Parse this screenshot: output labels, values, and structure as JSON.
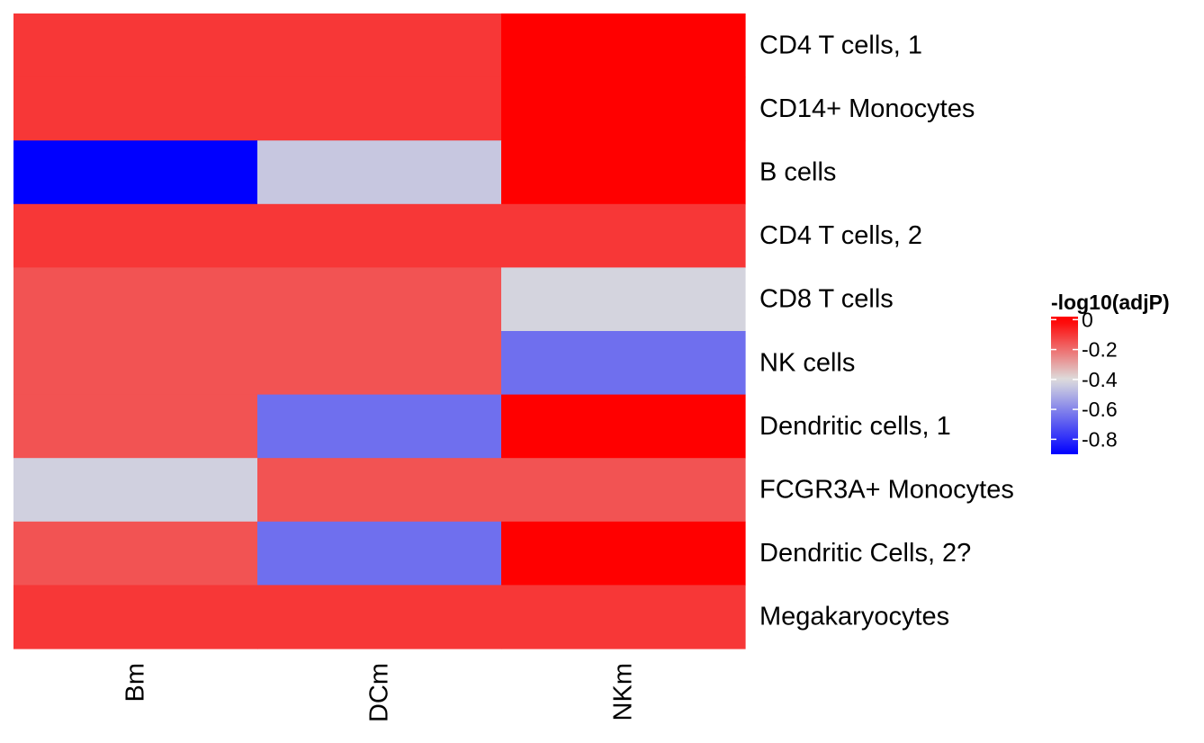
{
  "chart_data": {
    "type": "heatmap",
    "legend_title": "-log10(adjP)",
    "legend_placement": "right",
    "colorscale": {
      "low_color": "#0000ff",
      "mid_color": "#dddddd",
      "high_color": "#ff0000",
      "domain": [
        -0.9,
        -0.4,
        0.0
      ]
    },
    "legend_ticks": [
      0,
      -0.2,
      -0.4,
      -0.6,
      -0.8
    ],
    "legend_tick_labels": [
      "0",
      "-0.2",
      "-0.4",
      "-0.6",
      "-0.8"
    ],
    "columns": [
      "Bm",
      "DCm",
      "NKm"
    ],
    "rows": [
      "CD4 T cells, 1",
      "CD14+ Monocytes",
      "B cells",
      "CD4 T cells, 2",
      "CD8 T cells",
      "NK cells",
      "Dendritic cells, 1",
      "FCGR3A+ Monocytes",
      "Dendritic Cells, 2?",
      "Megakaryocytes"
    ],
    "values": [
      [
        -0.1,
        -0.1,
        0.0
      ],
      [
        -0.1,
        -0.1,
        0.0
      ],
      [
        -0.9,
        -0.45,
        0.0
      ],
      [
        -0.1,
        -0.1,
        -0.1
      ],
      [
        -0.15,
        -0.15,
        -0.42
      ],
      [
        -0.15,
        -0.15,
        -0.65
      ],
      [
        -0.15,
        -0.65,
        0.0
      ],
      [
        -0.43,
        -0.15,
        -0.15
      ],
      [
        -0.15,
        -0.65,
        0.0
      ],
      [
        -0.1,
        -0.1,
        -0.1
      ]
    ]
  }
}
